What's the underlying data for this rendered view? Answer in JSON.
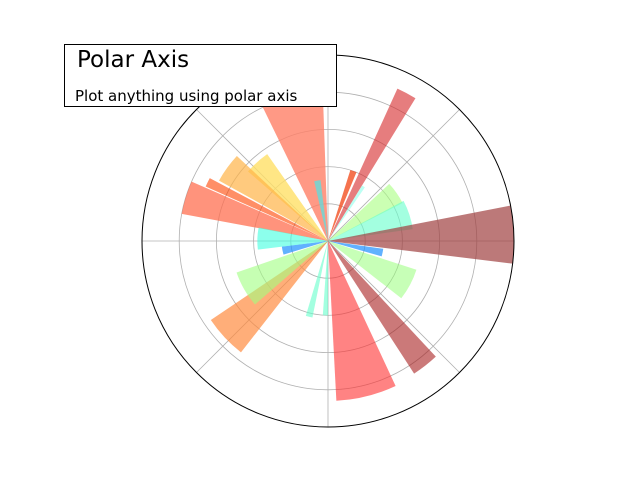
{
  "chart_data": {
    "type": "bar",
    "projection": "polar",
    "grid": true,
    "theta_unit": "degrees",
    "theta_grid_deg": [
      0,
      45,
      90,
      135,
      180,
      225,
      270,
      315
    ],
    "r_grid": [
      0.2,
      0.4,
      0.6,
      0.8
    ],
    "rlim": [
      0,
      1
    ],
    "bars": [
      {
        "theta_deg": 62,
        "width_deg": 7,
        "r": 0.9,
        "color": "#d62728",
        "alpha": 0.6
      },
      {
        "theta_deg": 104,
        "width_deg": 24,
        "r": 0.82,
        "color": "#ff7f66",
        "alpha": 0.8
      },
      {
        "theta_deg": 70,
        "width_deg": 5,
        "r": 0.4,
        "color": "#f25022",
        "alpha": 0.8
      },
      {
        "theta_deg": 132,
        "width_deg": 14,
        "r": 0.57,
        "color": "#ffe066",
        "alpha": 0.8
      },
      {
        "theta_deg": 144,
        "width_deg": 14,
        "r": 0.67,
        "color": "#ffb347",
        "alpha": 0.7
      },
      {
        "theta_deg": 163,
        "width_deg": 13,
        "r": 0.8,
        "color": "#ff6f50",
        "alpha": 0.75
      },
      {
        "theta_deg": 154,
        "width_deg": 4,
        "r": 0.72,
        "color": "#ff4500",
        "alpha": 0.6
      },
      {
        "theta_deg": 100,
        "width_deg": 6,
        "r": 0.33,
        "color": "#66d9d9",
        "alpha": 0.8
      },
      {
        "theta_deg": 57,
        "width_deg": 3,
        "r": 0.35,
        "color": "#a0ffee",
        "alpha": 0.7
      },
      {
        "theta_deg": 35,
        "width_deg": 16,
        "r": 0.45,
        "color": "#a8ff80",
        "alpha": 0.6
      },
      {
        "theta_deg": 18,
        "width_deg": 20,
        "r": 0.46,
        "color": "#66ffcc",
        "alpha": 0.6
      },
      {
        "theta_deg": 2,
        "width_deg": 18,
        "r": 1.0,
        "color": "#a04040",
        "alpha": 0.7
      },
      {
        "theta_deg": -12,
        "width_deg": 8,
        "r": 0.3,
        "color": "#1e90ff",
        "alpha": 0.7
      },
      {
        "theta_deg": -28,
        "width_deg": 20,
        "r": 0.5,
        "color": "#90ff70",
        "alpha": 0.5
      },
      {
        "theta_deg": -52,
        "width_deg": 10,
        "r": 0.85,
        "color": "#a82020",
        "alpha": 0.6
      },
      {
        "theta_deg": -76,
        "width_deg": 22,
        "r": 0.86,
        "color": "#ff3030",
        "alpha": 0.6
      },
      {
        "theta_deg": -92,
        "width_deg": 4,
        "r": 0.4,
        "color": "#66ffcc",
        "alpha": 0.6
      },
      {
        "theta_deg": -104,
        "width_deg": 5,
        "r": 0.42,
        "color": "#66ffcc",
        "alpha": 0.6
      },
      {
        "theta_deg": -137,
        "width_deg": 18,
        "r": 0.76,
        "color": "#ff8c40",
        "alpha": 0.7
      },
      {
        "theta_deg": -150,
        "width_deg": 22,
        "r": 0.52,
        "color": "#a0ff80",
        "alpha": 0.6
      },
      {
        "theta_deg": -168,
        "width_deg": 10,
        "r": 0.25,
        "color": "#1e90ff",
        "alpha": 0.7
      },
      {
        "theta_deg": 178,
        "width_deg": 18,
        "r": 0.38,
        "color": "#40ffe0",
        "alpha": 0.6
      }
    ]
  },
  "annotation": {
    "title": "Polar Axis",
    "subtitle": "Plot anything using polar axis"
  }
}
